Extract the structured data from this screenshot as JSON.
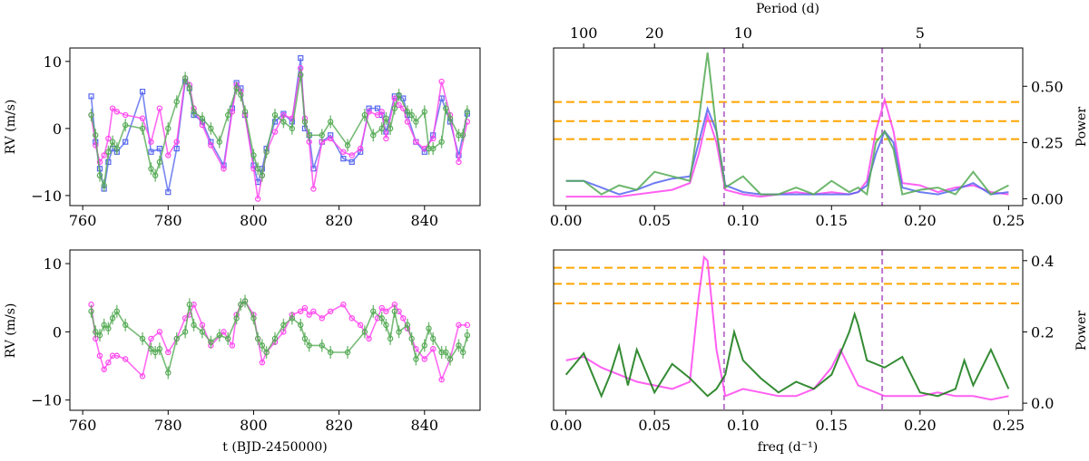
{
  "colors": {
    "magenta": "#ff44ee",
    "blue": "#5566ee",
    "green_light": "#55aa55",
    "green_dark": "#117711",
    "orange": "#ffa500",
    "purple_dash": "#bb77cc"
  },
  "chart_data": [
    {
      "id": "rv_top",
      "type": "line",
      "title": "",
      "xlabel": "",
      "ylabel": "RV (m/s)",
      "xlim": [
        757,
        853
      ],
      "ylim": [
        -11.5,
        12
      ],
      "xticks": [
        760,
        780,
        800,
        820,
        840
      ],
      "yticks": [
        -10,
        0,
        10
      ],
      "series": [
        {
          "color": "blue",
          "marker": "square",
          "errorbars": false,
          "x": [
            762,
            763,
            764,
            765,
            766,
            767,
            768,
            770,
            774,
            776,
            778,
            780,
            782,
            784,
            785,
            786,
            788,
            790,
            793,
            795,
            796,
            797,
            798,
            800,
            801,
            802,
            803,
            805,
            807,
            809,
            811,
            812,
            813,
            814,
            816,
            818,
            821,
            823,
            825,
            827,
            829,
            830,
            831,
            833,
            834,
            835,
            836,
            838,
            840,
            842,
            844,
            846,
            848,
            850
          ],
          "y": [
            4.8,
            -2,
            -6,
            -9,
            -5,
            -3,
            -3.5,
            -2,
            5.5,
            -3.5,
            -3,
            -9.5,
            -3,
            7,
            6,
            2,
            1,
            -2,
            -5.5,
            3,
            6.8,
            6,
            2,
            -5.5,
            -8,
            -6,
            -3,
            1,
            2.2,
            1,
            10.5,
            0,
            -1,
            -6,
            -2,
            -1,
            -4.5,
            -5,
            -3.5,
            3,
            3,
            2,
            -0.5,
            4.8,
            4.8,
            4.5,
            2,
            -2,
            -3.5,
            -1,
            4.5,
            1,
            -4,
            2.2
          ]
        },
        {
          "color": "magenta",
          "marker": "circle",
          "errorbars": false,
          "x": [
            762,
            763,
            764,
            765,
            766,
            767,
            768,
            770,
            774,
            776,
            778,
            780,
            782,
            784,
            785,
            786,
            788,
            790,
            793,
            795,
            796,
            797,
            798,
            800,
            801,
            802,
            803,
            805,
            807,
            809,
            811,
            812,
            813,
            814,
            816,
            818,
            821,
            823,
            825,
            827,
            829,
            830,
            831,
            833,
            834,
            835,
            836,
            838,
            840,
            842,
            844,
            846,
            848,
            850
          ],
          "y": [
            2,
            -2.5,
            -5,
            -4,
            -1.5,
            3,
            2.5,
            2,
            1.5,
            -2,
            3,
            -4,
            -2,
            7.5,
            6.5,
            3,
            0.5,
            -2.5,
            -6,
            2.5,
            6.5,
            5.5,
            2,
            -6,
            -10.5,
            -7,
            -3.5,
            -0.5,
            2,
            1.5,
            9,
            1.5,
            -2,
            -9,
            -2,
            -1.5,
            -3.5,
            -4,
            -3,
            2.5,
            2,
            2.5,
            -1.5,
            4.5,
            3.5,
            3,
            1,
            -2,
            -3,
            -1.5,
            7,
            2,
            -5,
            1
          ]
        },
        {
          "color": "green_light",
          "marker": "circle",
          "errorbars": true,
          "x": [
            762,
            763,
            764,
            765,
            766,
            767,
            768,
            770,
            774,
            776,
            777,
            778,
            780,
            782,
            784,
            785,
            786,
            788,
            790,
            792,
            794,
            796,
            797,
            798,
            800,
            801,
            802,
            803,
            805,
            807,
            809,
            811,
            812,
            813,
            816,
            818,
            822,
            826,
            828,
            830,
            831,
            832,
            833,
            834,
            836,
            837,
            838,
            840,
            841,
            842,
            844,
            845,
            846,
            848,
            849,
            850
          ],
          "y": [
            2,
            -1,
            -7,
            -8.5,
            -3.5,
            -2,
            -3,
            0.5,
            0,
            -6,
            -7,
            -5,
            0,
            4,
            7.5,
            6,
            2.5,
            1.5,
            0,
            -2,
            2,
            6,
            5,
            2.5,
            -4,
            -6,
            -7,
            -3.5,
            2,
            1,
            0,
            8,
            1,
            -1,
            -1,
            1,
            -2.5,
            2,
            -1,
            0,
            1.5,
            0,
            3,
            5,
            2.5,
            2,
            1,
            2.5,
            -3,
            -3,
            -2,
            3,
            1.5,
            -1,
            -1,
            2.5
          ]
        }
      ]
    },
    {
      "id": "rv_bottom",
      "type": "line",
      "title": "",
      "xlabel": "t (BJD-2450000)",
      "ylabel": "RV (m/s)",
      "xlim": [
        757,
        853
      ],
      "ylim": [
        -11.5,
        12
      ],
      "xticks": [
        760,
        780,
        800,
        820,
        840
      ],
      "yticks": [
        -10,
        0,
        10
      ],
      "series": [
        {
          "color": "magenta",
          "marker": "circle",
          "errorbars": false,
          "x": [
            762,
            763,
            764,
            765,
            766,
            767,
            768,
            770,
            774,
            776,
            778,
            780,
            782,
            784,
            785,
            786,
            788,
            790,
            793,
            795,
            796,
            797,
            798,
            800,
            801,
            802,
            803,
            805,
            807,
            809,
            811,
            812,
            813,
            814,
            816,
            818,
            821,
            823,
            825,
            827,
            829,
            830,
            831,
            833,
            834,
            835,
            836,
            838,
            840,
            842,
            844,
            846,
            848,
            850
          ],
          "y": [
            4,
            -1,
            -3.5,
            -5.5,
            -4.5,
            -3.5,
            -3.5,
            -4,
            -6.5,
            -1,
            0,
            -3,
            -1,
            2,
            2.5,
            4,
            1,
            -2,
            0,
            -2,
            2.5,
            4,
            4.5,
            2.5,
            -1,
            -4.5,
            -3,
            -1.5,
            0,
            2.5,
            3,
            3.5,
            2.5,
            3,
            2,
            3,
            4,
            2,
            1,
            -1,
            2,
            3.5,
            3,
            4,
            3,
            2,
            0.5,
            -2.5,
            -4,
            -2.5,
            -7,
            -4,
            1,
            1
          ]
        },
        {
          "color": "green_light",
          "marker": "circle",
          "errorbars": true,
          "x": [
            762,
            763,
            764,
            765,
            766,
            767,
            768,
            770,
            774,
            776,
            777,
            778,
            780,
            782,
            784,
            785,
            786,
            788,
            790,
            792,
            794,
            796,
            797,
            798,
            800,
            801,
            802,
            803,
            805,
            807,
            809,
            811,
            812,
            813,
            816,
            818,
            822,
            826,
            828,
            830,
            831,
            832,
            833,
            834,
            836,
            837,
            838,
            840,
            841,
            842,
            844,
            845,
            846,
            848,
            849,
            850
          ],
          "y": [
            3,
            0,
            -0.5,
            1,
            0.5,
            2,
            3,
            1,
            -1,
            -2.5,
            -3,
            -2.5,
            -6,
            -1,
            0,
            4,
            1,
            0,
            -1.5,
            -0.5,
            -1,
            2,
            4,
            4.5,
            2,
            -1,
            -2,
            -3,
            -1,
            1,
            2,
            1,
            -1,
            -2,
            -2,
            -3,
            -3,
            0,
            3,
            2,
            1,
            -1,
            3,
            0,
            1,
            -1,
            -4,
            -2,
            0.5,
            -1,
            -3,
            -3,
            -4,
            -2,
            -3,
            -0.5
          ]
        }
      ]
    },
    {
      "id": "periodogram_top",
      "type": "line",
      "title": "",
      "xlabel": "",
      "ylabel": "Power",
      "top_xlabel": "Period (d)",
      "top_xticks": [
        100,
        20,
        10,
        5
      ],
      "xlim": [
        -0.007,
        0.258
      ],
      "ylim": [
        -0.03,
        0.67
      ],
      "xticks": [
        0.0,
        0.05,
        0.1,
        0.15,
        0.2,
        0.25
      ],
      "xtick_labels": [
        "0.00",
        "0.05",
        "0.10",
        "0.15",
        "0.20",
        "0.25"
      ],
      "yticks": [
        0.0,
        0.25,
        0.5
      ],
      "ytick_labels": [
        "0.00",
        "0.25",
        "0.50"
      ],
      "hlines": [
        0.43,
        0.345,
        0.265
      ],
      "vlines": [
        0.0893,
        0.1786
      ],
      "series": [
        {
          "color": "magenta",
          "x": [
            0.0,
            0.01,
            0.02,
            0.03,
            0.04,
            0.05,
            0.06,
            0.07,
            0.075,
            0.08,
            0.085,
            0.09,
            0.1,
            0.11,
            0.12,
            0.13,
            0.14,
            0.15,
            0.16,
            0.165,
            0.17,
            0.175,
            0.18,
            0.185,
            0.19,
            0.2,
            0.21,
            0.22,
            0.23,
            0.24,
            0.25
          ],
          "y": [
            0.01,
            0.01,
            0.01,
            0.01,
            0.02,
            0.03,
            0.04,
            0.07,
            0.2,
            0.37,
            0.25,
            0.04,
            0.02,
            0.01,
            0.02,
            0.03,
            0.02,
            0.03,
            0.02,
            0.03,
            0.08,
            0.3,
            0.44,
            0.3,
            0.07,
            0.06,
            0.03,
            0.05,
            0.06,
            0.03,
            0.02
          ]
        },
        {
          "color": "blue",
          "x": [
            0.0,
            0.01,
            0.02,
            0.03,
            0.04,
            0.05,
            0.06,
            0.07,
            0.075,
            0.08,
            0.085,
            0.09,
            0.1,
            0.11,
            0.12,
            0.13,
            0.14,
            0.15,
            0.16,
            0.165,
            0.17,
            0.175,
            0.18,
            0.185,
            0.19,
            0.2,
            0.21,
            0.22,
            0.23,
            0.24,
            0.25
          ],
          "y": [
            0.08,
            0.08,
            0.05,
            0.02,
            0.04,
            0.07,
            0.09,
            0.1,
            0.25,
            0.4,
            0.3,
            0.06,
            0.03,
            0.02,
            0.02,
            0.02,
            0.02,
            0.02,
            0.02,
            0.03,
            0.06,
            0.2,
            0.3,
            0.25,
            0.05,
            0.03,
            0.02,
            0.04,
            0.07,
            0.02,
            0.03
          ]
        },
        {
          "color": "green_light",
          "x": [
            0.0,
            0.01,
            0.02,
            0.03,
            0.04,
            0.05,
            0.06,
            0.07,
            0.075,
            0.08,
            0.085,
            0.09,
            0.1,
            0.11,
            0.12,
            0.13,
            0.14,
            0.15,
            0.16,
            0.165,
            0.17,
            0.175,
            0.18,
            0.185,
            0.19,
            0.2,
            0.21,
            0.22,
            0.23,
            0.24,
            0.25
          ],
          "y": [
            0.08,
            0.08,
            0.02,
            0.06,
            0.04,
            0.12,
            0.1,
            0.08,
            0.35,
            0.65,
            0.3,
            0.05,
            0.1,
            0.02,
            0.02,
            0.05,
            0.02,
            0.08,
            0.03,
            0.05,
            0.02,
            0.25,
            0.3,
            0.22,
            0.02,
            0.04,
            0.05,
            0.02,
            0.12,
            0.02,
            0.06
          ]
        }
      ]
    },
    {
      "id": "periodogram_bottom",
      "type": "line",
      "title": "",
      "xlabel": "freq (d⁻¹)",
      "ylabel": "Power",
      "xlim": [
        -0.007,
        0.258
      ],
      "ylim": [
        -0.02,
        0.43
      ],
      "xticks": [
        0.0,
        0.05,
        0.1,
        0.15,
        0.2,
        0.25
      ],
      "xtick_labels": [
        "0.00",
        "0.05",
        "0.10",
        "0.15",
        "0.20",
        "0.25"
      ],
      "yticks": [
        0.0,
        0.2,
        0.4
      ],
      "ytick_labels": [
        "0.0",
        "0.2",
        "0.4"
      ],
      "hlines": [
        0.38,
        0.335,
        0.28
      ],
      "vlines": [
        0.0893,
        0.1786
      ],
      "series": [
        {
          "color": "magenta",
          "x": [
            0.0,
            0.01,
            0.02,
            0.03,
            0.04,
            0.05,
            0.06,
            0.07,
            0.075,
            0.078,
            0.08,
            0.085,
            0.09,
            0.1,
            0.11,
            0.12,
            0.13,
            0.14,
            0.15,
            0.155,
            0.16,
            0.165,
            0.17,
            0.18,
            0.19,
            0.2,
            0.21,
            0.22,
            0.23,
            0.24,
            0.25
          ],
          "y": [
            0.12,
            0.13,
            0.1,
            0.08,
            0.06,
            0.05,
            0.04,
            0.06,
            0.3,
            0.41,
            0.4,
            0.15,
            0.02,
            0.04,
            0.03,
            0.02,
            0.02,
            0.04,
            0.1,
            0.15,
            0.1,
            0.05,
            0.04,
            0.02,
            0.02,
            0.02,
            0.03,
            0.02,
            0.02,
            0.01,
            0.02
          ]
        },
        {
          "color": "green_dark",
          "x": [
            0.0,
            0.01,
            0.02,
            0.025,
            0.03,
            0.035,
            0.04,
            0.05,
            0.06,
            0.07,
            0.08,
            0.085,
            0.09,
            0.095,
            0.1,
            0.11,
            0.12,
            0.13,
            0.14,
            0.15,
            0.16,
            0.163,
            0.165,
            0.17,
            0.18,
            0.19,
            0.2,
            0.21,
            0.22,
            0.225,
            0.23,
            0.24,
            0.25
          ],
          "y": [
            0.08,
            0.14,
            0.02,
            0.08,
            0.16,
            0.05,
            0.15,
            0.03,
            0.11,
            0.07,
            0.02,
            0.04,
            0.08,
            0.2,
            0.12,
            0.07,
            0.03,
            0.06,
            0.04,
            0.08,
            0.2,
            0.25,
            0.22,
            0.12,
            0.1,
            0.13,
            0.03,
            0.02,
            0.04,
            0.12,
            0.05,
            0.15,
            0.04
          ]
        }
      ]
    }
  ]
}
